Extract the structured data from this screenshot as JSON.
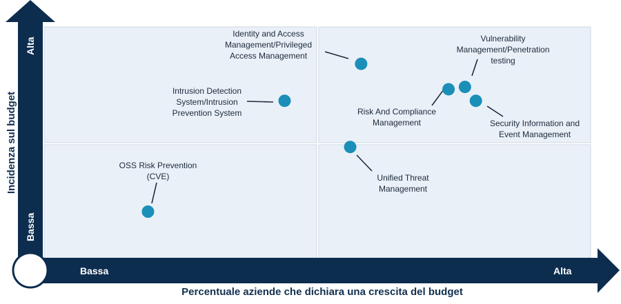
{
  "chart_data": {
    "type": "scatter",
    "title": "",
    "xlabel": "Percentuale aziende che dichiara una crescita del budget",
    "ylabel": "Incidenza sul budget",
    "x_low": "Bassa",
    "x_high": "Alta",
    "y_low": "Bassa",
    "y_high": "Alta",
    "xlim": [
      0,
      10
    ],
    "ylim": [
      0,
      10
    ],
    "grid": false,
    "quadrant_split": {
      "x": 5,
      "y": 5
    },
    "colors": {
      "axis": "#0d2d4f",
      "point": "#1b8fb8",
      "quadrant_fill": "#eaf0f8",
      "quadrant_border": "#cfd8e3",
      "text": "#1b2a3a"
    },
    "points": [
      {
        "name": "Identity and Access Management/Privileged Access Management",
        "label_lines": [
          "Identity and Access",
          "Management/Privileged",
          "Access Management"
        ],
        "x": 5.8,
        "y": 8.4
      },
      {
        "name": "Intrusion Detection System/Intrusion Prevention System",
        "label_lines": [
          "Intrusion Detection",
          "System/Intrusion",
          "Prevention System"
        ],
        "x": 4.4,
        "y": 6.8
      },
      {
        "name": "Vulnerability Management/Penetration testing",
        "label_lines": [
          "Vulnerability",
          "Management/Penetration",
          "testing"
        ],
        "x": 7.7,
        "y": 7.4
      },
      {
        "name": "Risk And Compliance Management",
        "label_lines": [
          "Risk And Compliance",
          "Management"
        ],
        "x": 7.4,
        "y": 7.3
      },
      {
        "name": "Security Information and Event Management",
        "label_lines": [
          "Security Information and",
          "Event Management"
        ],
        "x": 7.9,
        "y": 6.8
      },
      {
        "name": "Unified Threat Management",
        "label_lines": [
          "Unified Threat",
          "Management"
        ],
        "x": 5.6,
        "y": 4.8
      },
      {
        "name": "OSS Risk Prevention (CVE)",
        "label_lines": [
          "OSS Risk Prevention",
          "(CVE)"
        ],
        "x": 1.9,
        "y": 2.0
      }
    ]
  }
}
